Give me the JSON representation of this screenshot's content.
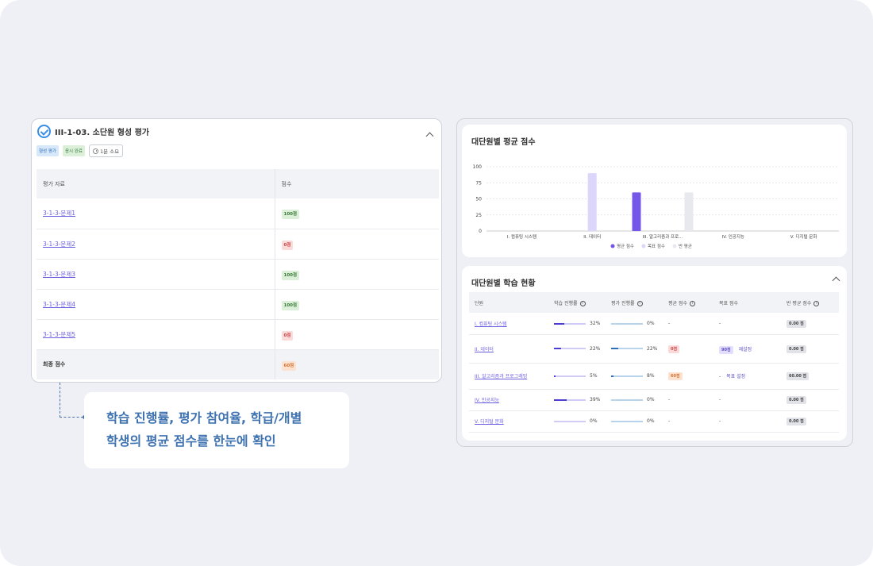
{
  "assessment": {
    "title": "III-1-03. 소단원 형성 평가",
    "badges": {
      "type": "형성 평가",
      "status": "응시 완료",
      "time": "1분 소요"
    },
    "columns": {
      "material": "평가 자료",
      "score": "점수"
    },
    "rows": [
      {
        "label": "3-1-3-문제1",
        "score": "100점",
        "tone": "good"
      },
      {
        "label": "3-1-3-문제2",
        "score": "0점",
        "tone": "bad"
      },
      {
        "label": "3-1-3-문제3",
        "score": "100점",
        "tone": "good"
      },
      {
        "label": "3-1-3-문제4",
        "score": "100점",
        "tone": "good"
      },
      {
        "label": "3-1-3-문제5",
        "score": "0점",
        "tone": "bad"
      }
    ],
    "total": {
      "label": "최종 점수",
      "score": "60점"
    }
  },
  "callout": {
    "line1": "학습 진행률, 평가 참여율, 학급/개별",
    "line2": "학생의 평균 점수를 한눈에 확인"
  },
  "chart_card": {
    "title": "대단원별 평균 점수"
  },
  "chart_data": {
    "type": "bar",
    "categories": [
      "I. 컴퓨팅 시스템",
      "II. 데이터",
      "III. 알고리즘과 프로...",
      "IV. 인공지능",
      "V. 디지털 문화"
    ],
    "series": [
      {
        "name": "평균 점수",
        "values": [
          0,
          0,
          60,
          0,
          0
        ],
        "color": "#7456e8"
      },
      {
        "name": "목표 점수",
        "values": [
          0,
          90,
          0,
          0,
          0
        ],
        "color": "#dcd6fb"
      },
      {
        "name": "반 평균",
        "values": [
          0,
          0,
          60,
          0,
          0
        ],
        "color": "#e8e9ef"
      }
    ],
    "yticks": [
      0,
      25,
      50,
      75,
      100
    ],
    "ylim": [
      0,
      100
    ],
    "grid": true,
    "legend": "bottom"
  },
  "status_card": {
    "title": "대단원별 학습 현황",
    "columns": {
      "unit": "단원",
      "progress": "학습 진행률",
      "eval_progress": "평가 진행률",
      "avg_score": "평균 점수",
      "target_score": "목표 점수",
      "class_avg": "반 평균 점수"
    },
    "info_glyph": "i",
    "rows": [
      {
        "unit": "I. 컴퓨팅 시스템",
        "progress": "32%",
        "progress_value": 32,
        "eval": "0%",
        "eval_value": 0,
        "avg": "-",
        "target": "-",
        "class_avg": "0.00 점"
      },
      {
        "unit": "II. 데이터",
        "progress": "22%",
        "progress_value": 22,
        "eval": "22%",
        "eval_value": 22,
        "avg": "0점",
        "avg_tone": "red",
        "target": "90점",
        "target_tone": "purple",
        "target_link": "재설정",
        "class_avg": "0.00 점"
      },
      {
        "unit": "III. 알고리즘과 프로그래밍",
        "progress": "5%",
        "progress_value": 5,
        "eval": "8%",
        "eval_value": 8,
        "avg": "60점",
        "avg_tone": "orange",
        "target": "-",
        "target_link": "목표 설정",
        "class_avg": "60.00 점"
      },
      {
        "unit": "IV. 인공지능",
        "progress": "39%",
        "progress_value": 39,
        "eval": "0%",
        "eval_value": 0,
        "avg": "-",
        "target": "-",
        "class_avg": "0.00 점"
      },
      {
        "unit": "V. 디지털 문화",
        "progress": "0%",
        "progress_value": 0,
        "eval": "0%",
        "eval_value": 0,
        "avg": "-",
        "target": "-",
        "class_avg": "0.00 점"
      }
    ]
  }
}
